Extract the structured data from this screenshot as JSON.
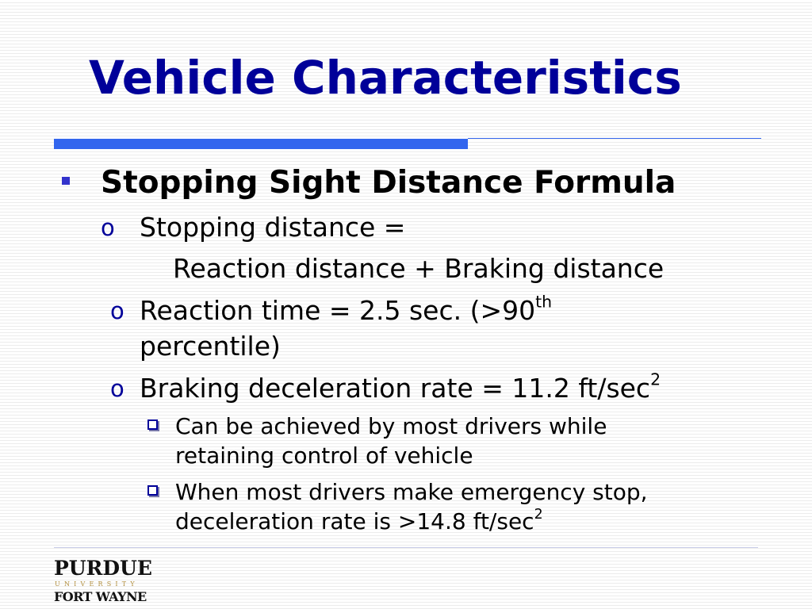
{
  "slide": {
    "title": "Vehicle Characteristics",
    "heading": "Stopping Sight Distance Formula",
    "sub_bullet_marker": "o",
    "lines": {
      "stopping_distance": "Stopping distance =",
      "stopping_distance_cont": "Reaction distance + Braking distance",
      "reaction_time_pre": "Reaction time = 2.5 sec. (>90",
      "reaction_time_sup": "th",
      "reaction_time_cont": "percentile)",
      "braking_pre": "Braking deceleration rate = 11.2 ft/sec",
      "braking_sup": "2",
      "achieved_1": "Can be achieved by most drivers while",
      "achieved_2": "retaining control of vehicle",
      "emergency_1": "When most drivers make emergency stop,",
      "emergency_2_pre": "deceleration rate is >14.8 ft/sec",
      "emergency_2_sup": "2"
    }
  },
  "logo": {
    "line1": "PURDUE",
    "line2": "UNIVERSITY",
    "line3": "FORT WAYNE"
  },
  "colors": {
    "title": "#000099",
    "accent_bar": "#3366ee",
    "bullet": "#3333cc"
  }
}
